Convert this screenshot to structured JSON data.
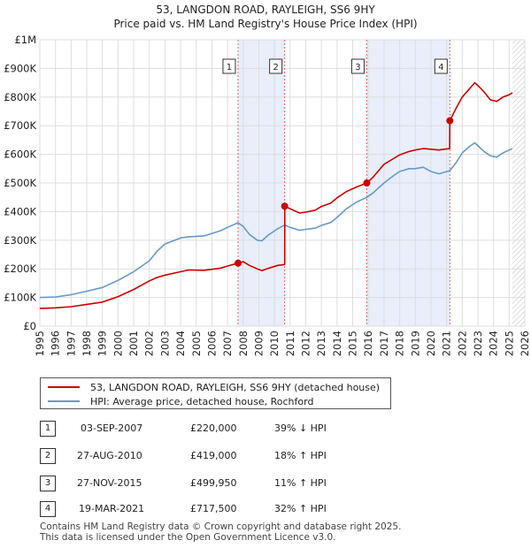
{
  "header": {
    "title": "53, LANGDON ROAD, RAYLEIGH, SS6 9HY",
    "subtitle": "Price paid vs. HM Land Registry's House Price Index (HPI)"
  },
  "chart_data": {
    "type": "line",
    "title": "53, LANGDON ROAD, RAYLEIGH, SS6 9HY",
    "subtitle": "Price paid vs. HM Land Registry's House Price Index (HPI)",
    "xlabel": "",
    "ylabel": "",
    "xlim": [
      1995,
      2026
    ],
    "ylim": [
      0,
      1000000
    ],
    "y_ticks": [
      {
        "value": 0,
        "label": "£0"
      },
      {
        "value": 100000,
        "label": "£100K"
      },
      {
        "value": 200000,
        "label": "£200K"
      },
      {
        "value": 300000,
        "label": "£300K"
      },
      {
        "value": 400000,
        "label": "£400K"
      },
      {
        "value": 500000,
        "label": "£500K"
      },
      {
        "value": 600000,
        "label": "£600K"
      },
      {
        "value": 700000,
        "label": "£700K"
      },
      {
        "value": 800000,
        "label": "£800K"
      },
      {
        "value": 900000,
        "label": "£900K"
      },
      {
        "value": 1000000,
        "label": "£1M"
      }
    ],
    "x_ticks": [
      "1995",
      "1996",
      "1997",
      "1998",
      "1999",
      "2000",
      "2001",
      "2002",
      "2003",
      "2004",
      "2005",
      "2006",
      "2007",
      "2008",
      "2009",
      "2010",
      "2011",
      "2012",
      "2013",
      "2014",
      "2015",
      "2016",
      "2017",
      "2018",
      "2019",
      "2020",
      "2021",
      "2022",
      "2023",
      "2024",
      "2025",
      "2026"
    ],
    "grid": true,
    "legend_position": "below",
    "series": [
      {
        "name": "53, LANGDON ROAD, RAYLEIGH, SS6 9HY (detached house)",
        "color": "#cc0000",
        "x": [
          1995.0,
          1996.0,
          1997.0,
          1998.0,
          1999.0,
          2000.0,
          2001.0,
          2002.0,
          2002.5,
          2003.0,
          2004.0,
          2004.5,
          2005.5,
          2006.5,
          2007.0,
          2007.67,
          2008.0,
          2008.4,
          2008.9,
          2009.2,
          2009.6,
          2010.2,
          2010.65,
          2010.66,
          2011.0,
          2011.6,
          2012.0,
          2012.6,
          2013.0,
          2013.6,
          2014.0,
          2014.6,
          2015.2,
          2015.9,
          2016.3,
          2017.0,
          2017.6,
          2018.0,
          2018.6,
          2019.0,
          2019.5,
          2020.0,
          2020.5,
          2021.2,
          2021.21,
          2021.6,
          2022.0,
          2022.4,
          2022.8,
          2023.0,
          2023.4,
          2023.8,
          2024.2,
          2024.6,
          2025.0,
          2025.2
        ],
        "y": [
          62000,
          64000,
          68000,
          76000,
          84000,
          103000,
          128000,
          158000,
          170000,
          178000,
          190000,
          196000,
          195000,
          202000,
          210000,
          220000,
          225000,
          212000,
          200000,
          194000,
          202000,
          212000,
          215000,
          419000,
          410000,
          395000,
          398000,
          405000,
          418000,
          430000,
          448000,
          470000,
          485000,
          499950,
          520000,
          565000,
          585000,
          598000,
          610000,
          615000,
          620000,
          618000,
          615000,
          620000,
          717500,
          760000,
          800000,
          825000,
          850000,
          840000,
          818000,
          790000,
          785000,
          800000,
          808000,
          815000
        ]
      },
      {
        "name": "HPI: Average price, detached house, Rochford",
        "color": "#6699cc",
        "x": [
          1995.0,
          1996.0,
          1997.0,
          1998.0,
          1999.0,
          2000.0,
          2001.0,
          2002.0,
          2002.5,
          2003.0,
          2004.0,
          2004.5,
          2005.5,
          2006.5,
          2007.0,
          2007.67,
          2008.0,
          2008.4,
          2008.9,
          2009.2,
          2009.6,
          2010.2,
          2010.66,
          2011.0,
          2011.6,
          2012.0,
          2012.6,
          2013.0,
          2013.6,
          2014.0,
          2014.6,
          2015.2,
          2015.9,
          2016.3,
          2017.0,
          2017.6,
          2018.0,
          2018.6,
          2019.0,
          2019.5,
          2020.0,
          2020.5,
          2021.21,
          2021.6,
          2022.0,
          2022.4,
          2022.8,
          2023.0,
          2023.4,
          2023.8,
          2024.2,
          2024.6,
          2025.0,
          2025.2
        ],
        "y": [
          100000,
          102000,
          110000,
          122000,
          135000,
          160000,
          190000,
          228000,
          262000,
          287000,
          308000,
          312000,
          315000,
          332000,
          345000,
          361000,
          348000,
          320000,
          300000,
          298000,
          318000,
          340000,
          353000,
          345000,
          335000,
          338000,
          342000,
          352000,
          362000,
          380000,
          410000,
          432000,
          450000,
          465000,
          500000,
          525000,
          540000,
          550000,
          550000,
          555000,
          540000,
          532000,
          543000,
          570000,
          605000,
          625000,
          640000,
          630000,
          610000,
          595000,
          590000,
          605000,
          615000,
          620000
        ]
      }
    ],
    "sales": [
      {
        "label": "1",
        "x": 2007.67,
        "y": 220000
      },
      {
        "label": "2",
        "x": 2010.65,
        "y": 419000
      },
      {
        "label": "3",
        "x": 2015.9,
        "y": 499950
      },
      {
        "label": "4",
        "x": 2021.21,
        "y": 717500
      }
    ],
    "shaded_periods": [
      [
        2007.67,
        2010.65
      ],
      [
        2015.9,
        2021.21
      ]
    ],
    "hatched_from": 2025.2
  },
  "legend": {
    "property_label": "53, LANGDON ROAD, RAYLEIGH, SS6 9HY (detached house)",
    "hpi_label": "HPI: Average price, detached house, Rochford",
    "property_color": "#cc0000",
    "hpi_color": "#6699cc"
  },
  "transactions": [
    {
      "num": "1",
      "date": "03-SEP-2007",
      "price": "£220,000",
      "hpi": "39% ↓ HPI"
    },
    {
      "num": "2",
      "date": "27-AUG-2010",
      "price": "£419,000",
      "hpi": "18% ↑ HPI"
    },
    {
      "num": "3",
      "date": "27-NOV-2015",
      "price": "£499,950",
      "hpi": "11% ↑ HPI"
    },
    {
      "num": "4",
      "date": "19-MAR-2021",
      "price": "£717,500",
      "hpi": "32% ↑ HPI"
    }
  ],
  "footer": {
    "line1": "Contains HM Land Registry data © Crown copyright and database right 2025.",
    "line2": "This data is licensed under the Open Government Licence v3.0."
  }
}
